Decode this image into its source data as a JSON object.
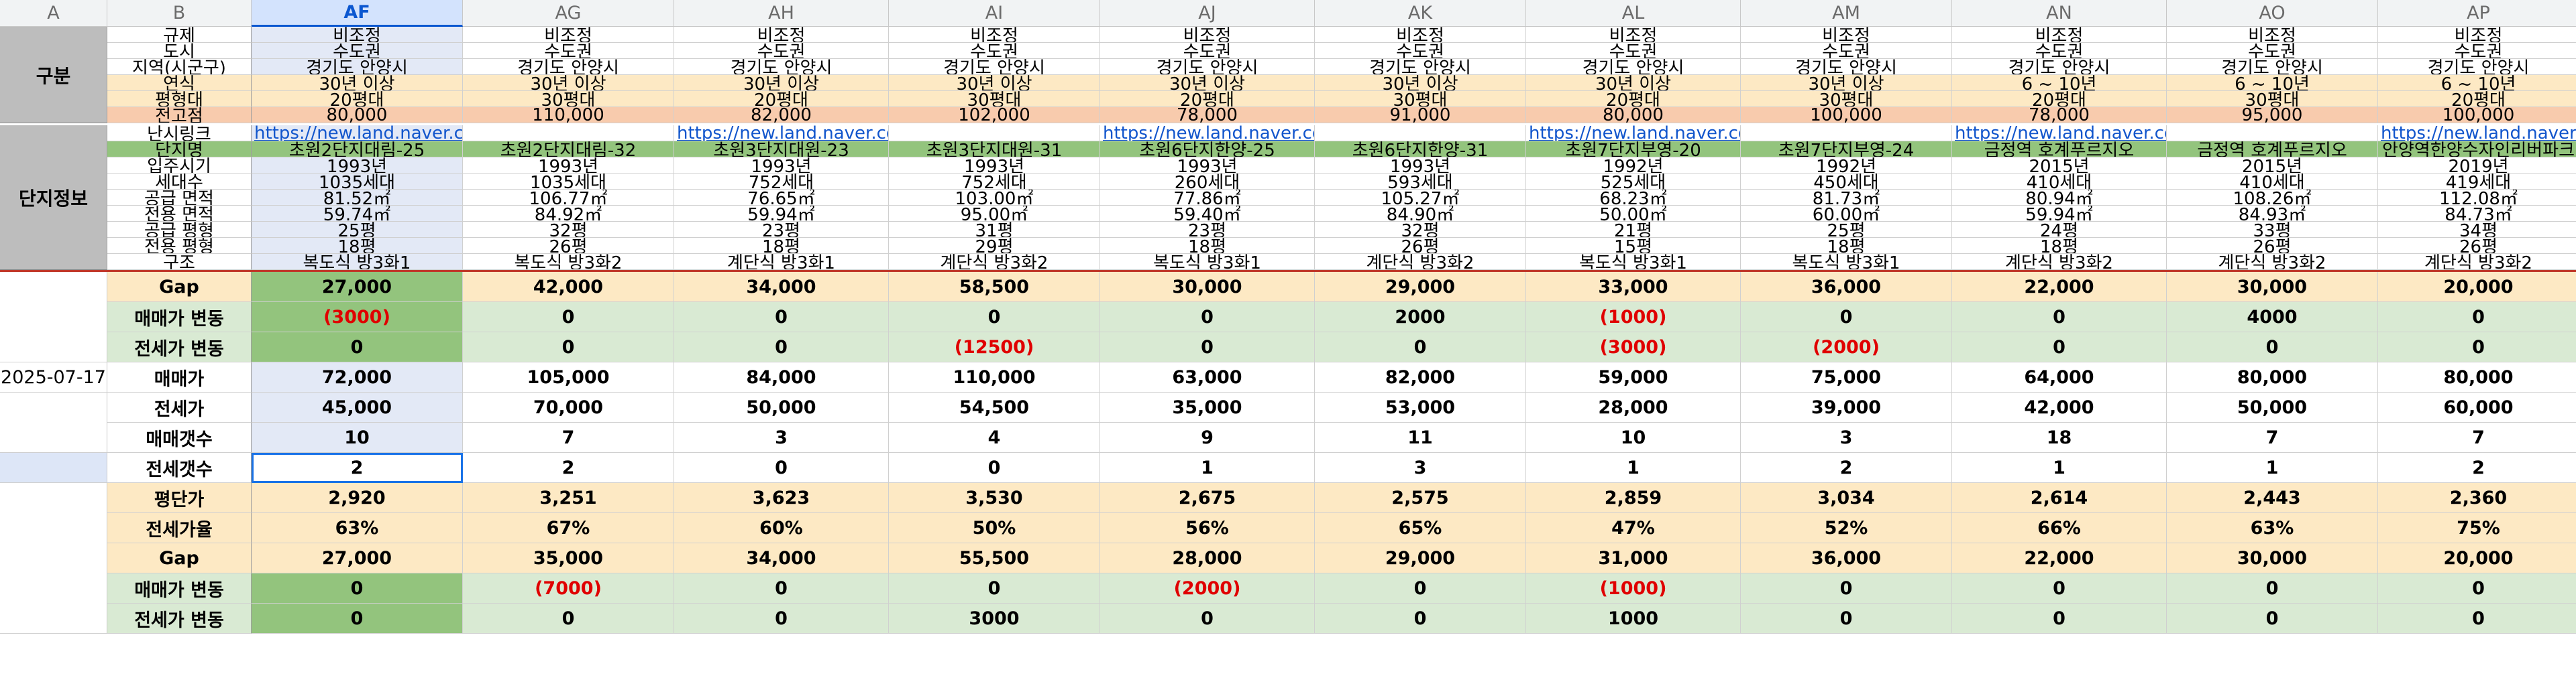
{
  "col_letters": [
    "A",
    "B",
    "AF",
    "AG",
    "AH",
    "AI",
    "AJ",
    "AK",
    "AL",
    "AM",
    "AN",
    "AO",
    "AP"
  ],
  "groups": {
    "gubun": "구분",
    "danji": "단지정보",
    "date": "2025-07-17"
  },
  "colors": {
    "orange": "#fde9c4",
    "salmon": "#f8cbad",
    "green": "#d9ead3",
    "lime": "#93c47d",
    "blue": "#dde6f7",
    "selcol": "#e3e9f6",
    "gray": "#bdbdbd",
    "accent": "#0b57d0"
  },
  "labels": [
    "규제",
    "도시",
    "지역(시군구)",
    "연식",
    "평형대",
    "전고점",
    "난시링크",
    "단지명",
    "입주시기",
    "세대수",
    "공급 면적",
    "전용 면적",
    "공급 평형",
    "전용 평형",
    "구조",
    "Gap",
    "매매가 변동",
    "전세가 변동",
    "매매가",
    "전세가",
    "매매갯수",
    "전세갯수",
    "평단가",
    "전세가율",
    "Gap",
    "매매가 변동",
    "전세가 변동"
  ],
  "rows": [
    [
      "비조정",
      "비조정",
      "비조정",
      "비조정",
      "비조정",
      "비조정",
      "비조정",
      "비조정",
      "비조정",
      "비조정",
      "비조정"
    ],
    [
      "수도권",
      "수도권",
      "수도권",
      "수도권",
      "수도권",
      "수도권",
      "수도권",
      "수도권",
      "수도권",
      "수도권",
      "수도권"
    ],
    [
      "경기도 안양시",
      "경기도 안양시",
      "경기도 안양시",
      "경기도 안양시",
      "경기도 안양시",
      "경기도 안양시",
      "경기도 안양시",
      "경기도 안양시",
      "경기도 안양시",
      "경기도 안양시",
      "경기도 안양시"
    ],
    [
      "30년 이상",
      "30년 이상",
      "30년 이상",
      "30년 이상",
      "30년 이상",
      "30년 이상",
      "30년 이상",
      "30년 이상",
      "6 ~ 10년",
      "6 ~ 10년",
      "6 ~ 10년"
    ],
    [
      "20평대",
      "30평대",
      "20평대",
      "30평대",
      "20평대",
      "30평대",
      "20평대",
      "30평대",
      "20평대",
      "30평대",
      "20평대"
    ],
    [
      "80,000",
      "110,000",
      "82,000",
      "102,000",
      "78,000",
      "91,000",
      "80,000",
      "100,000",
      "78,000",
      "95,000",
      "100,000"
    ],
    [
      "https://new.land.naver.co",
      "",
      "https://new.land.naver.co",
      "",
      "https://new.land.naver.co",
      "",
      "https://new.land.naver.co",
      "",
      "https://new.land.naver.co",
      "",
      "https://new.land.naver.co"
    ],
    [
      "초원2단지대림-25",
      "초원2단지대림-32",
      "초원3단지대원-23",
      "초원3단지대원-31",
      "초원6단지한양-25",
      "초원6단지한양-31",
      "초원7단지부영-20",
      "초원7단지부영-24",
      "금정역 호계푸르지오",
      "금정역 호계푸르지오",
      "안양역한양수자인리버파크"
    ],
    [
      "1993년",
      "1993년",
      "1993년",
      "1993년",
      "1993년",
      "1993년",
      "1992년",
      "1992년",
      "2015년",
      "2015년",
      "2019년"
    ],
    [
      "1035세대",
      "1035세대",
      "752세대",
      "752세대",
      "260세대",
      "593세대",
      "525세대",
      "450세대",
      "410세대",
      "410세대",
      "419세대"
    ],
    [
      "81.52㎡",
      "106.77㎡",
      "76.65㎡",
      "103.00㎡",
      "77.86㎡",
      "105.27㎡",
      "68.23㎡",
      "81.73㎡",
      "80.94㎡",
      "108.26㎡",
      "112.08㎡"
    ],
    [
      "59.74㎡",
      "84.92㎡",
      "59.94㎡",
      "95.00㎡",
      "59.40㎡",
      "84.90㎡",
      "50.00㎡",
      "60.00㎡",
      "59.94㎡",
      "84.93㎡",
      "84.73㎡"
    ],
    [
      "25평",
      "32평",
      "23평",
      "31평",
      "23평",
      "32평",
      "21평",
      "25평",
      "24평",
      "33평",
      "34평"
    ],
    [
      "18평",
      "26평",
      "18평",
      "29평",
      "18평",
      "26평",
      "15평",
      "18평",
      "18평",
      "26평",
      "26평"
    ],
    [
      "복도식 방3화1",
      "복도식 방3화2",
      "계단식 방3화1",
      "계단식 방3화2",
      "복도식 방3화1",
      "계단식 방3화2",
      "복도식 방3화1",
      "복도식 방3화1",
      "계단식 방3화2",
      "계단식 방3화2",
      "계단식 방3화2"
    ],
    [
      "27,000",
      "42,000",
      "34,000",
      "58,500",
      "30,000",
      "29,000",
      "33,000",
      "36,000",
      "22,000",
      "30,000",
      "20,000"
    ],
    [
      "(3000)",
      "0",
      "0",
      "0",
      "0",
      "2000",
      "(1000)",
      "0",
      "0",
      "4000",
      "0"
    ],
    [
      "0",
      "0",
      "0",
      "(12500)",
      "0",
      "0",
      "(3000)",
      "(2000)",
      "0",
      "0",
      "0"
    ],
    [
      "72,000",
      "105,000",
      "84,000",
      "110,000",
      "63,000",
      "82,000",
      "59,000",
      "75,000",
      "64,000",
      "80,000",
      "80,000"
    ],
    [
      "45,000",
      "70,000",
      "50,000",
      "54,500",
      "35,000",
      "53,000",
      "28,000",
      "39,000",
      "42,000",
      "50,000",
      "60,000"
    ],
    [
      "10",
      "7",
      "3",
      "4",
      "9",
      "11",
      "10",
      "3",
      "18",
      "7",
      "7"
    ],
    [
      "2",
      "2",
      "0",
      "0",
      "1",
      "3",
      "1",
      "2",
      "1",
      "1",
      "2"
    ],
    [
      "2,920",
      "3,251",
      "3,623",
      "3,530",
      "2,675",
      "2,575",
      "2,859",
      "3,034",
      "2,614",
      "2,443",
      "2,360"
    ],
    [
      "63%",
      "67%",
      "60%",
      "50%",
      "56%",
      "65%",
      "47%",
      "52%",
      "66%",
      "63%",
      "75%"
    ],
    [
      "27,000",
      "35,000",
      "34,000",
      "55,500",
      "28,000",
      "29,000",
      "31,000",
      "36,000",
      "22,000",
      "30,000",
      "20,000"
    ],
    [
      "0",
      "(7000)",
      "0",
      "0",
      "(2000)",
      "0",
      "(1000)",
      "0",
      "0",
      "0",
      "0"
    ],
    [
      "0",
      "0",
      "0",
      "3000",
      "0",
      "0",
      "1000",
      "0",
      "0",
      "0",
      "0"
    ]
  ]
}
